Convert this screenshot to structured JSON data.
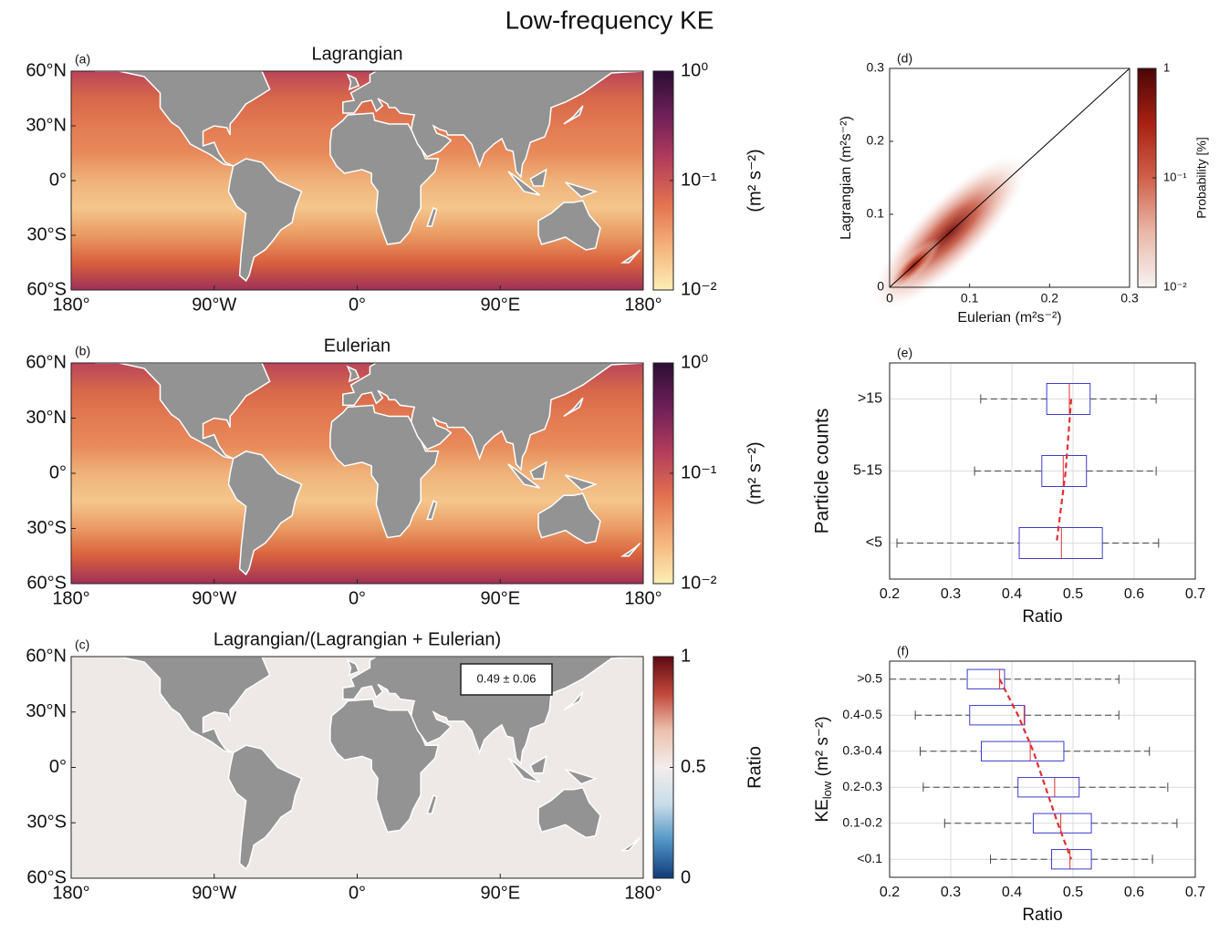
{
  "title": "Low-frequency KE",
  "chart_data": [
    {
      "type": "map",
      "panel": "(a)",
      "title": "Lagrangian",
      "xlim": [
        -180,
        180
      ],
      "ylim": [
        -60,
        60
      ],
      "xticks": [
        {
          "value": -180,
          "label": "180°"
        },
        {
          "value": -90,
          "label": "90°W"
        },
        {
          "value": 0,
          "label": "0°"
        },
        {
          "value": 90,
          "label": "90°E"
        },
        {
          "value": 180,
          "label": "180°"
        }
      ],
      "yticks": [
        {
          "value": 60,
          "label": "60°N"
        },
        {
          "value": 30,
          "label": "30°N"
        },
        {
          "value": 0,
          "label": "0°"
        },
        {
          "value": -30,
          "label": "30°S"
        },
        {
          "value": -60,
          "label": "60°S"
        }
      ],
      "colorbar": {
        "scale": "log",
        "lim": [
          0.01,
          1
        ],
        "ticks": [
          {
            "value": 1,
            "label": "10⁰"
          },
          {
            "value": 0.1,
            "label": "10⁻¹"
          },
          {
            "value": 0.01,
            "label": "10⁻²"
          }
        ],
        "label": "(m² s⁻²)",
        "colors": [
          "#fcefb4",
          "#f4b27a",
          "#e2704f",
          "#b13c5c",
          "#6e1f58",
          "#2a0e33"
        ]
      }
    },
    {
      "type": "map",
      "panel": "(b)",
      "title": "Eulerian",
      "xlim": [
        -180,
        180
      ],
      "ylim": [
        -60,
        60
      ],
      "xticks": [
        {
          "value": -180,
          "label": "180°"
        },
        {
          "value": -90,
          "label": "90°W"
        },
        {
          "value": 0,
          "label": "0°"
        },
        {
          "value": 90,
          "label": "90°E"
        },
        {
          "value": 180,
          "label": "180°"
        }
      ],
      "yticks": [
        {
          "value": 60,
          "label": "60°N"
        },
        {
          "value": 30,
          "label": "30°N"
        },
        {
          "value": 0,
          "label": "0°"
        },
        {
          "value": -30,
          "label": "30°S"
        },
        {
          "value": -60,
          "label": "60°S"
        }
      ],
      "colorbar": {
        "scale": "log",
        "lim": [
          0.01,
          1
        ],
        "ticks": [
          {
            "value": 1,
            "label": "10⁰"
          },
          {
            "value": 0.1,
            "label": "10⁻¹"
          },
          {
            "value": 0.01,
            "label": "10⁻²"
          }
        ],
        "label": "(m² s⁻²)",
        "colors": [
          "#fcefb4",
          "#f4b27a",
          "#e2704f",
          "#b13c5c",
          "#6e1f58",
          "#2a0e33"
        ]
      }
    },
    {
      "type": "map",
      "panel": "(c)",
      "title": "Lagrangian/(Lagrangian + Eulerian)",
      "xlim": [
        -180,
        180
      ],
      "ylim": [
        -60,
        60
      ],
      "xticks": [
        {
          "value": -180,
          "label": "180°"
        },
        {
          "value": -90,
          "label": "90°W"
        },
        {
          "value": 0,
          "label": "0°"
        },
        {
          "value": 90,
          "label": "90°E"
        },
        {
          "value": 180,
          "label": "180°"
        }
      ],
      "yticks": [
        {
          "value": 60,
          "label": "60°N"
        },
        {
          "value": 30,
          "label": "30°N"
        },
        {
          "value": 0,
          "label": "0°"
        },
        {
          "value": -30,
          "label": "30°S"
        },
        {
          "value": -60,
          "label": "60°S"
        }
      ],
      "annotation": "0.49 ± 0.06",
      "colorbar": {
        "scale": "linear",
        "lim": [
          0,
          1
        ],
        "ticks": [
          1,
          0.5,
          0
        ],
        "label": "Ratio",
        "colors": [
          "#123a7a",
          "#4f93c4",
          "#c9dde9",
          "#f2eeec",
          "#ecc0ae",
          "#c0473a",
          "#5e0a12"
        ]
      }
    },
    {
      "type": "hist2d",
      "panel": "(d)",
      "xlabel": "Eulerian (m²s⁻²)",
      "ylabel": "Lagrangian (m²s⁻²)",
      "xlim": [
        0,
        0.3
      ],
      "ylim": [
        0,
        0.3
      ],
      "xticks": [
        0,
        0.1,
        0.2,
        0.3
      ],
      "yticks": [
        0,
        0.1,
        0.2,
        0.3
      ],
      "colorbar": {
        "scale": "log",
        "lim": [
          0.01,
          1
        ],
        "ticks": [
          1,
          {
            "value": 0.1,
            "label": "10⁻¹"
          },
          {
            "value": 0.01,
            "label": "10⁻²"
          }
        ],
        "label": "Probability [%]",
        "colors": [
          "#f7f2f2",
          "#e9b8a8",
          "#d0604a",
          "#a82012",
          "#4a0606"
        ]
      }
    },
    {
      "type": "box",
      "panel": "(e)",
      "xlabel": "Ratio",
      "ylabel": "Particle counts",
      "xlim": [
        0.2,
        0.7
      ],
      "xticks": [
        0.2,
        0.3,
        0.4,
        0.5,
        0.6,
        0.7
      ],
      "grid": true,
      "categories": [
        ">15",
        "5-15",
        "<5"
      ],
      "whisker_low": [
        0.349,
        0.339,
        0.212
      ],
      "q1": [
        0.457,
        0.449,
        0.412
      ],
      "median": [
        0.494,
        0.484,
        0.481
      ],
      "q3": [
        0.528,
        0.522,
        0.548
      ],
      "whisker_high": [
        0.636,
        0.636,
        0.64
      ],
      "mean": [
        0.497,
        0.488,
        0.473
      ],
      "box_color": "#3b3bd0",
      "median_color": "#e03030"
    },
    {
      "type": "box",
      "panel": "(f)",
      "xlabel": "Ratio",
      "ylabel": {
        "main": "KE",
        "sub": "low",
        "unit": " (m² s⁻²)"
      },
      "xlim": [
        0.2,
        0.7
      ],
      "xticks": [
        0.2,
        0.3,
        0.4,
        0.5,
        0.6,
        0.7
      ],
      "grid": true,
      "categories": [
        ">0.5",
        "0.4-0.5",
        "0.3-0.4",
        "0.2-0.3",
        "0.1-0.2",
        "<0.1"
      ],
      "whisker_low": [
        0.2,
        0.242,
        0.25,
        0.255,
        0.29,
        0.365
      ],
      "q1": [
        0.327,
        0.331,
        0.35,
        0.41,
        0.435,
        0.465
      ],
      "median": [
        0.38,
        0.42,
        0.43,
        0.47,
        0.48,
        0.495
      ],
      "q3": [
        0.388,
        0.421,
        0.485,
        0.51,
        0.53,
        0.53
      ],
      "whisker_high": [
        0.575,
        0.575,
        0.625,
        0.655,
        0.67,
        0.63
      ],
      "mean": [
        0.38,
        0.41,
        0.435,
        0.455,
        0.475,
        0.497
      ],
      "box_color": "#3b3bd0",
      "median_color": "#e03030"
    }
  ]
}
